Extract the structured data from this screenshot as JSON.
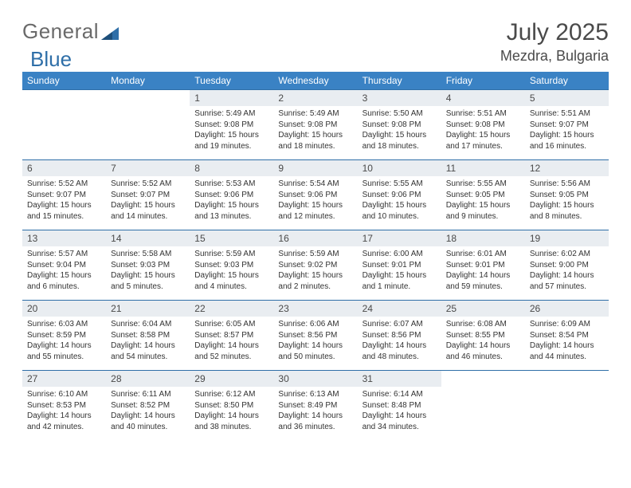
{
  "brand": {
    "part1": "General",
    "part2": "Blue"
  },
  "title": "July 2025",
  "location": "Mezdra, Bulgaria",
  "colors": {
    "header_bg": "#3a82c4",
    "header_fg": "#ffffff",
    "daynum_bg": "#e9edf1",
    "rule": "#2f6fa8",
    "text": "#333333",
    "title_fg": "#4a4a4a"
  },
  "day_headers": [
    "Sunday",
    "Monday",
    "Tuesday",
    "Wednesday",
    "Thursday",
    "Friday",
    "Saturday"
  ],
  "weeks": [
    [
      null,
      null,
      {
        "n": "1",
        "sr": "Sunrise: 5:49 AM",
        "ss": "Sunset: 9:08 PM",
        "dl": "Daylight: 15 hours and 19 minutes."
      },
      {
        "n": "2",
        "sr": "Sunrise: 5:49 AM",
        "ss": "Sunset: 9:08 PM",
        "dl": "Daylight: 15 hours and 18 minutes."
      },
      {
        "n": "3",
        "sr": "Sunrise: 5:50 AM",
        "ss": "Sunset: 9:08 PM",
        "dl": "Daylight: 15 hours and 18 minutes."
      },
      {
        "n": "4",
        "sr": "Sunrise: 5:51 AM",
        "ss": "Sunset: 9:08 PM",
        "dl": "Daylight: 15 hours and 17 minutes."
      },
      {
        "n": "5",
        "sr": "Sunrise: 5:51 AM",
        "ss": "Sunset: 9:07 PM",
        "dl": "Daylight: 15 hours and 16 minutes."
      }
    ],
    [
      {
        "n": "6",
        "sr": "Sunrise: 5:52 AM",
        "ss": "Sunset: 9:07 PM",
        "dl": "Daylight: 15 hours and 15 minutes."
      },
      {
        "n": "7",
        "sr": "Sunrise: 5:52 AM",
        "ss": "Sunset: 9:07 PM",
        "dl": "Daylight: 15 hours and 14 minutes."
      },
      {
        "n": "8",
        "sr": "Sunrise: 5:53 AM",
        "ss": "Sunset: 9:06 PM",
        "dl": "Daylight: 15 hours and 13 minutes."
      },
      {
        "n": "9",
        "sr": "Sunrise: 5:54 AM",
        "ss": "Sunset: 9:06 PM",
        "dl": "Daylight: 15 hours and 12 minutes."
      },
      {
        "n": "10",
        "sr": "Sunrise: 5:55 AM",
        "ss": "Sunset: 9:06 PM",
        "dl": "Daylight: 15 hours and 10 minutes."
      },
      {
        "n": "11",
        "sr": "Sunrise: 5:55 AM",
        "ss": "Sunset: 9:05 PM",
        "dl": "Daylight: 15 hours and 9 minutes."
      },
      {
        "n": "12",
        "sr": "Sunrise: 5:56 AM",
        "ss": "Sunset: 9:05 PM",
        "dl": "Daylight: 15 hours and 8 minutes."
      }
    ],
    [
      {
        "n": "13",
        "sr": "Sunrise: 5:57 AM",
        "ss": "Sunset: 9:04 PM",
        "dl": "Daylight: 15 hours and 6 minutes."
      },
      {
        "n": "14",
        "sr": "Sunrise: 5:58 AM",
        "ss": "Sunset: 9:03 PM",
        "dl": "Daylight: 15 hours and 5 minutes."
      },
      {
        "n": "15",
        "sr": "Sunrise: 5:59 AM",
        "ss": "Sunset: 9:03 PM",
        "dl": "Daylight: 15 hours and 4 minutes."
      },
      {
        "n": "16",
        "sr": "Sunrise: 5:59 AM",
        "ss": "Sunset: 9:02 PM",
        "dl": "Daylight: 15 hours and 2 minutes."
      },
      {
        "n": "17",
        "sr": "Sunrise: 6:00 AM",
        "ss": "Sunset: 9:01 PM",
        "dl": "Daylight: 15 hours and 1 minute."
      },
      {
        "n": "18",
        "sr": "Sunrise: 6:01 AM",
        "ss": "Sunset: 9:01 PM",
        "dl": "Daylight: 14 hours and 59 minutes."
      },
      {
        "n": "19",
        "sr": "Sunrise: 6:02 AM",
        "ss": "Sunset: 9:00 PM",
        "dl": "Daylight: 14 hours and 57 minutes."
      }
    ],
    [
      {
        "n": "20",
        "sr": "Sunrise: 6:03 AM",
        "ss": "Sunset: 8:59 PM",
        "dl": "Daylight: 14 hours and 55 minutes."
      },
      {
        "n": "21",
        "sr": "Sunrise: 6:04 AM",
        "ss": "Sunset: 8:58 PM",
        "dl": "Daylight: 14 hours and 54 minutes."
      },
      {
        "n": "22",
        "sr": "Sunrise: 6:05 AM",
        "ss": "Sunset: 8:57 PM",
        "dl": "Daylight: 14 hours and 52 minutes."
      },
      {
        "n": "23",
        "sr": "Sunrise: 6:06 AM",
        "ss": "Sunset: 8:56 PM",
        "dl": "Daylight: 14 hours and 50 minutes."
      },
      {
        "n": "24",
        "sr": "Sunrise: 6:07 AM",
        "ss": "Sunset: 8:56 PM",
        "dl": "Daylight: 14 hours and 48 minutes."
      },
      {
        "n": "25",
        "sr": "Sunrise: 6:08 AM",
        "ss": "Sunset: 8:55 PM",
        "dl": "Daylight: 14 hours and 46 minutes."
      },
      {
        "n": "26",
        "sr": "Sunrise: 6:09 AM",
        "ss": "Sunset: 8:54 PM",
        "dl": "Daylight: 14 hours and 44 minutes."
      }
    ],
    [
      {
        "n": "27",
        "sr": "Sunrise: 6:10 AM",
        "ss": "Sunset: 8:53 PM",
        "dl": "Daylight: 14 hours and 42 minutes."
      },
      {
        "n": "28",
        "sr": "Sunrise: 6:11 AM",
        "ss": "Sunset: 8:52 PM",
        "dl": "Daylight: 14 hours and 40 minutes."
      },
      {
        "n": "29",
        "sr": "Sunrise: 6:12 AM",
        "ss": "Sunset: 8:50 PM",
        "dl": "Daylight: 14 hours and 38 minutes."
      },
      {
        "n": "30",
        "sr": "Sunrise: 6:13 AM",
        "ss": "Sunset: 8:49 PM",
        "dl": "Daylight: 14 hours and 36 minutes."
      },
      {
        "n": "31",
        "sr": "Sunrise: 6:14 AM",
        "ss": "Sunset: 8:48 PM",
        "dl": "Daylight: 14 hours and 34 minutes."
      },
      null,
      null
    ]
  ]
}
